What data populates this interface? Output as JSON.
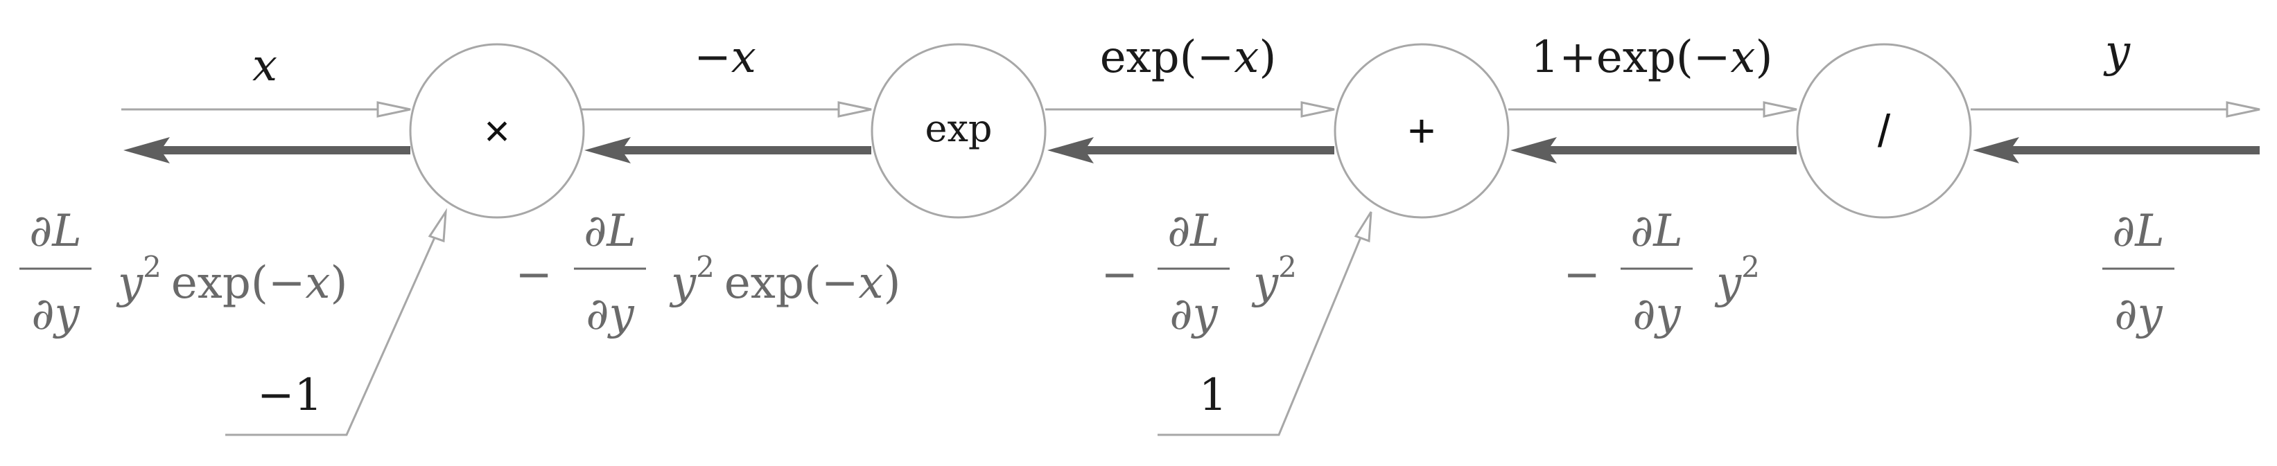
{
  "nodes": {
    "mul": {
      "symbol": "×"
    },
    "exp": {
      "symbol": "exp"
    },
    "add": {
      "symbol": "+"
    },
    "div": {
      "symbol": "/"
    }
  },
  "forward_labels": {
    "x": "x",
    "neg_x_sign": "−",
    "neg_x_var": "x",
    "exp_func": "exp(−",
    "exp_var": "x",
    "exp_close": ")",
    "one_plus": "1+exp(−",
    "one_plus_var": "x",
    "one_plus_close": ")",
    "y": "y"
  },
  "side_inputs": {
    "mul_input": "−1",
    "add_input": "1"
  },
  "gradients": {
    "partial_num": "∂L",
    "partial_den": "∂y",
    "minus": "−",
    "y_sq_base": "y",
    "y_sq_exp": "2",
    "exp_func": "exp(−",
    "exp_var": "x",
    "exp_close": ")"
  },
  "colors": {
    "forward_arrow": "#a7a7a7",
    "backward_arrow": "#5e5e5e",
    "gradient_text": "#6a6a6a",
    "label_text": "#1a1a1a"
  }
}
